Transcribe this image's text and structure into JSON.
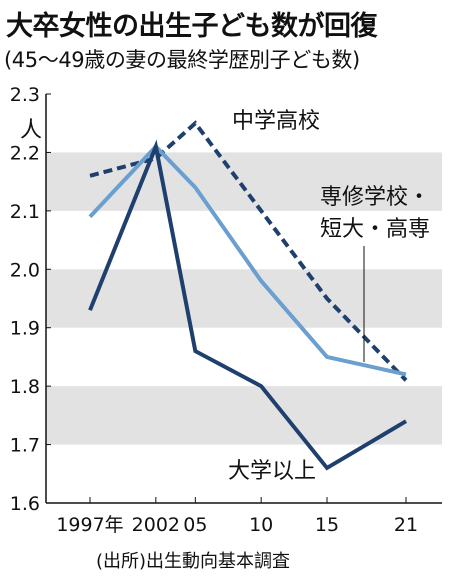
{
  "chart_data": {
    "type": "line",
    "title": "大卒女性の出生子ども数が回復",
    "subtitle": "(45〜49歳の妻の最終学歴別子ども数)",
    "ylabel": "人",
    "source": "(出所)出生動向基本調査",
    "ylim": [
      1.6,
      2.3
    ],
    "yticks": [
      "1.6",
      "1.7",
      "1.8",
      "1.9",
      "2.0",
      "2.1",
      "2.2",
      "2.3"
    ],
    "categories": [
      "1997年",
      "2002",
      "05",
      "10",
      "15",
      "21"
    ],
    "x": [
      1997,
      2002,
      2005,
      2010,
      2015,
      2021
    ],
    "series": [
      {
        "name": "中学高校",
        "style": "dashed",
        "color": "#1f3f6e",
        "values": [
          2.16,
          2.19,
          2.25,
          2.1,
          1.95,
          1.81
        ]
      },
      {
        "name": "専修学校・短大・高専",
        "style": "solid",
        "color": "#6a9fd0",
        "values": [
          2.09,
          2.21,
          2.14,
          1.98,
          1.85,
          1.82
        ]
      },
      {
        "name": "大学以上",
        "style": "solid",
        "color": "#1f3f6e",
        "values": [
          1.93,
          2.21,
          1.86,
          1.8,
          1.66,
          1.74
        ]
      }
    ],
    "label_lines": {
      "senshu_line1": "専修学校・",
      "senshu_line2": "短大・高専"
    },
    "colors": {
      "band": "#e2e2e2",
      "axis": "#111111"
    }
  }
}
